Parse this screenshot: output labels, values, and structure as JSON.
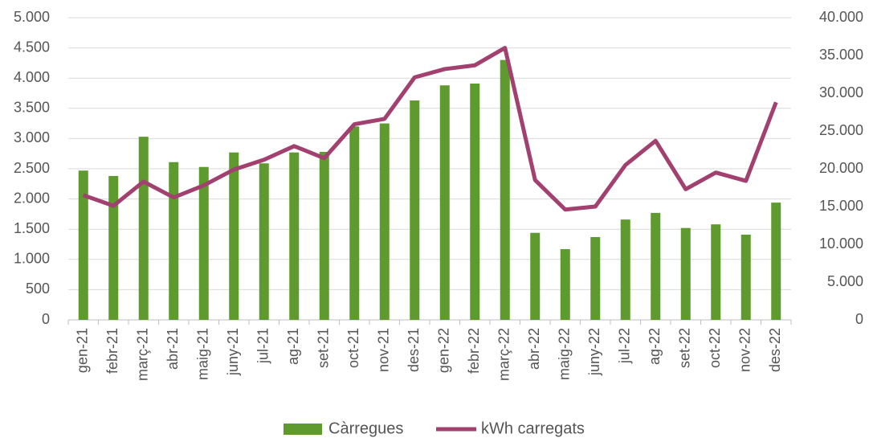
{
  "chart_data": {
    "type": "bar_line",
    "categories": [
      "gen-21",
      "febr-21",
      "març-21",
      "abr-21",
      "maig-21",
      "juny-21",
      "jul-21",
      "ag-21",
      "set-21",
      "oct-21",
      "nov-21",
      "des-21",
      "gen-22",
      "febr-22",
      "març-22",
      "abr-22",
      "maig-22",
      "juny-22",
      "jul-22",
      "ag-22",
      "set-22",
      "oct-22",
      "nov-22",
      "des-22"
    ],
    "series": [
      {
        "name": "Càrregues",
        "type": "bar",
        "color": "#5e9a2e",
        "values": [
          2470,
          2380,
          3030,
          2610,
          2530,
          2770,
          2590,
          2770,
          2780,
          3200,
          3250,
          3630,
          3880,
          3910,
          4300,
          1440,
          1170,
          1370,
          1660,
          1770,
          1520,
          1580,
          1410,
          1940
        ]
      },
      {
        "name": "kWh carregats",
        "type": "line",
        "axis": "y2",
        "color": "#a2406f",
        "values": [
          16500,
          15100,
          18300,
          16200,
          17800,
          19900,
          21200,
          23000,
          21400,
          25900,
          26600,
          32100,
          33200,
          33700,
          36000,
          18500,
          14600,
          15000,
          20500,
          23700,
          17300,
          19500,
          18400,
          28800
        ]
      }
    ],
    "ylim": [
      0,
      5000
    ],
    "yticks": [
      0,
      500,
      {
        "value": 1000,
        "label": "1.000"
      },
      {
        "value": 1500,
        "label": "1.500"
      },
      {
        "value": 2000,
        "label": "2.000"
      },
      {
        "value": 2500,
        "label": "2.500"
      },
      {
        "value": 3000,
        "label": "3.000"
      },
      {
        "value": 3500,
        "label": "3.500"
      },
      {
        "value": 4000,
        "label": "4.000"
      },
      {
        "value": 4500,
        "label": "4.500"
      },
      {
        "value": 5000,
        "label": "5.000"
      }
    ],
    "y2lim": [
      0,
      40000
    ],
    "y2ticks": [
      0,
      {
        "value": 5000,
        "label": "5.000"
      },
      {
        "value": 10000,
        "label": "10.000"
      },
      {
        "value": 15000,
        "label": "15.000"
      },
      {
        "value": 20000,
        "label": "20.000"
      },
      {
        "value": 25000,
        "label": "25.000"
      },
      {
        "value": 30000,
        "label": "30.000"
      },
      {
        "value": 35000,
        "label": "35.000"
      },
      {
        "value": 40000,
        "label": "40.000"
      }
    ],
    "grid": true,
    "legend": "bottom"
  }
}
